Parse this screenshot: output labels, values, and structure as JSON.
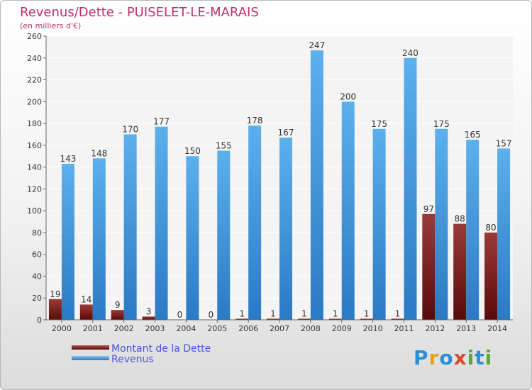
{
  "header": {
    "title": "Revenus/Dette - PUISELET-LE-MARAIS",
    "subtitle": "(en milliers d'€)"
  },
  "legend": {
    "items": [
      {
        "label": "Montant de la Dette",
        "color": "#7a1a1a"
      },
      {
        "label": "Revenus",
        "color": "#4a9de0"
      }
    ]
  },
  "logo": {
    "text": "Proxiti",
    "letters": [
      "P",
      "r",
      "o",
      "x",
      "i",
      "t",
      "i"
    ],
    "letter_colors": [
      "#2a8fd6",
      "#e6a01c",
      "#2a8fd6",
      "#d84a2a",
      "#5aa83a",
      "#2a8fd6",
      "#5aa83a"
    ]
  },
  "chart_data": {
    "type": "bar",
    "title": "Revenus/Dette - PUISELET-LE-MARAIS",
    "subtitle": "(en milliers d'€)",
    "categories": [
      "2000",
      "2001",
      "2002",
      "2003",
      "2004",
      "2005",
      "2006",
      "2007",
      "2008",
      "2009",
      "2010",
      "2011",
      "2012",
      "2013",
      "2014"
    ],
    "series": [
      {
        "name": "Montant de la Dette",
        "color": "#7a1a1a",
        "values": [
          19,
          14,
          9,
          3,
          0,
          0,
          1,
          1,
          1,
          1,
          1,
          1,
          97,
          88,
          80
        ]
      },
      {
        "name": "Revenus",
        "color": "#4a9de0",
        "values": [
          143,
          148,
          170,
          177,
          150,
          155,
          178,
          167,
          247,
          200,
          175,
          240,
          175,
          165,
          157
        ]
      }
    ],
    "yticks": [
      0,
      20,
      40,
      60,
      80,
      100,
      120,
      140,
      160,
      180,
      200,
      220,
      240,
      260
    ],
    "ylim": [
      0,
      260
    ],
    "grid": true,
    "legend_position": "bottom-left"
  }
}
